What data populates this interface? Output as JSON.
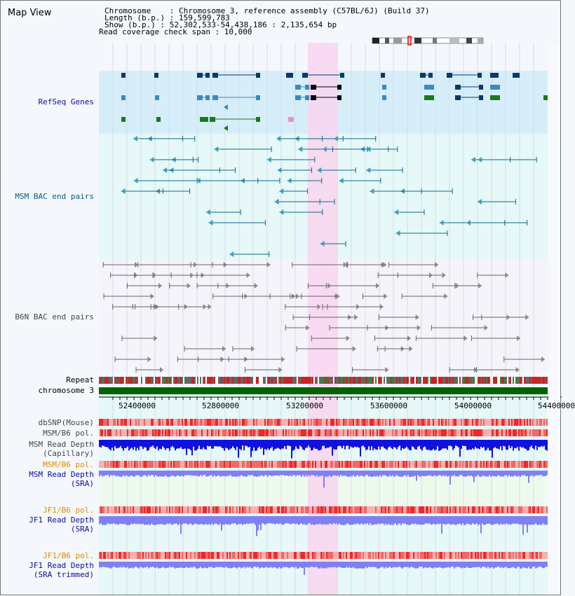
{
  "title": "Map View",
  "info": {
    "chromosome": "Chromosome    : Chromosome 3, reference assembly (C57BL/6J) (Build 37)",
    "length": "Length (b.p.) : 159,599,783",
    "show": "Show (b.p.) : 52,302,533-54,438,186 : 2,135,654 bp",
    "span": "Read coverage check span : 10,000"
  },
  "tracks": {
    "refseq": "RefSeq Genes",
    "msm_bac": "MSM BAC end pairs",
    "b6n_bac": "B6N BAC end pairs",
    "repeat": "Repeat",
    "chrom": "chromosome 3",
    "dbsnp": "dbSNP(Mouse)",
    "msm_b6_pol": "MSM/B6 pol.",
    "msm_depth_cap_1": "MSM Read Depth",
    "msm_depth_cap_2": "(Capillary)",
    "msm_b6_pol_sra": "MSM/B6 pol.",
    "msm_depth_sra_1": "MSM Read Depth",
    "msm_depth_sra_2": "(SRA)",
    "jf1_b6_pol": "JF1/B6 pol.",
    "jf1_depth_1": "JF1 Read Depth",
    "jf1_depth_2": "(SRA)",
    "jf1_b6_pol_t": "JF1/B6 pol.",
    "jf1_depth_t_1": "JF1 Read Depth",
    "jf1_depth_t_2": "(SRA trimmed)"
  },
  "axis": {
    "ticks": [
      "52400000",
      "52800000",
      "53200000",
      "53600000",
      "54000000",
      "54400000"
    ]
  },
  "colors": {
    "refseq_bg": "#d6eefa",
    "bac_bg": "#e6f8f8",
    "highlight": "#f8d6f0",
    "chromosome": "#006400",
    "depth_dark": "#1010e0",
    "depth_light": "#8080f0",
    "pol_red": "#f06060"
  }
}
